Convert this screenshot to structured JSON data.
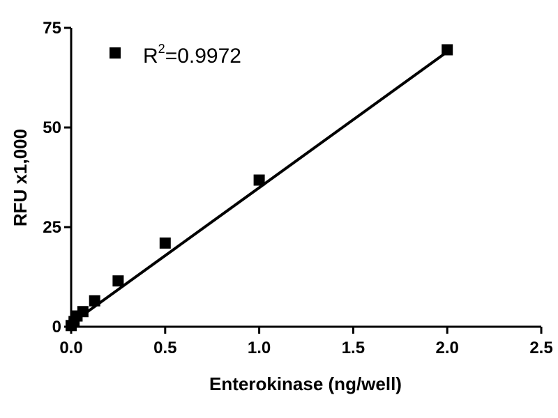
{
  "chart_data": {
    "type": "scatter",
    "xlabel": "Enterokinase (ng/well)",
    "ylabel": "RFU x1,000",
    "xlim": [
      0,
      2.5
    ],
    "ylim": [
      0,
      75
    ],
    "x_ticks": [
      "0.0",
      "0.5",
      "1.0",
      "1.5",
      "2.0",
      "2.5"
    ],
    "y_ticks": [
      "0",
      "25",
      "50",
      "75"
    ],
    "grid": false,
    "legend_position": "top-left",
    "series": [
      {
        "name": "R²=0.9972",
        "marker": "square",
        "x": [
          0,
          0.0156,
          0.0313,
          0.0625,
          0.125,
          0.25,
          0.5,
          1.0,
          2.0
        ],
        "y": [
          0.3,
          1.3,
          2.7,
          3.8,
          6.5,
          11.5,
          21.0,
          36.8,
          69.5
        ]
      }
    ],
    "fit_line": {
      "type": "linear",
      "x": [
        0,
        2.0
      ],
      "y": [
        0.8,
        69.0
      ]
    }
  },
  "legend": {
    "label_prefix": "R",
    "label_sup": "2",
    "label_suffix": "=0.9972"
  },
  "colors": {
    "marker": "#000000",
    "line": "#000000"
  }
}
